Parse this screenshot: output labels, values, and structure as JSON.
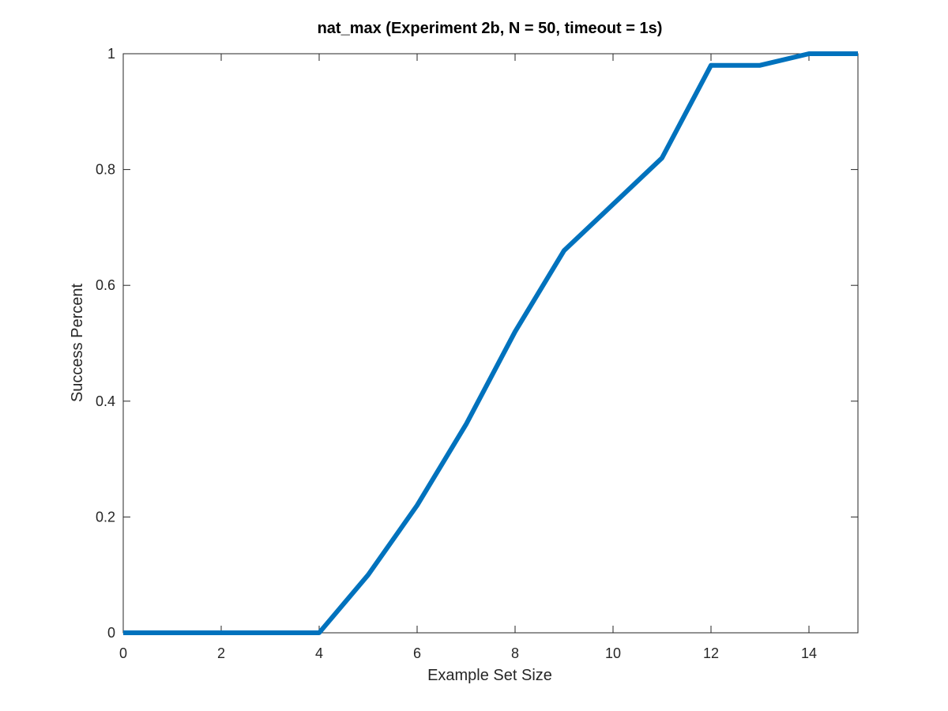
{
  "chart_data": {
    "type": "line",
    "title": "nat_max (Experiment 2b, N = 50, timeout = 1s)",
    "xlabel": "Example Set Size",
    "ylabel": "Success Percent",
    "xlim": [
      0,
      15
    ],
    "ylim": [
      0,
      1
    ],
    "xticks": [
      0,
      2,
      4,
      6,
      8,
      10,
      12,
      14
    ],
    "xtick_labels": [
      "0",
      "2",
      "4",
      "6",
      "8",
      "10",
      "12",
      "14"
    ],
    "yticks": [
      0,
      0.2,
      0.4,
      0.6,
      0.8,
      1
    ],
    "ytick_labels": [
      "0",
      "0.2",
      "0.4",
      "0.6",
      "0.8",
      "1"
    ],
    "grid": false,
    "series": [
      {
        "color": "#0072BD",
        "x": [
          0,
          1,
          2,
          3,
          4,
          5,
          6,
          7,
          8,
          9,
          10,
          11,
          12,
          13,
          14,
          15
        ],
        "y": [
          0,
          0,
          0,
          0,
          0,
          0.1,
          0.22,
          0.36,
          0.52,
          0.66,
          0.74,
          0.82,
          0.98,
          0.98,
          1.0,
          1.0
        ]
      }
    ]
  }
}
